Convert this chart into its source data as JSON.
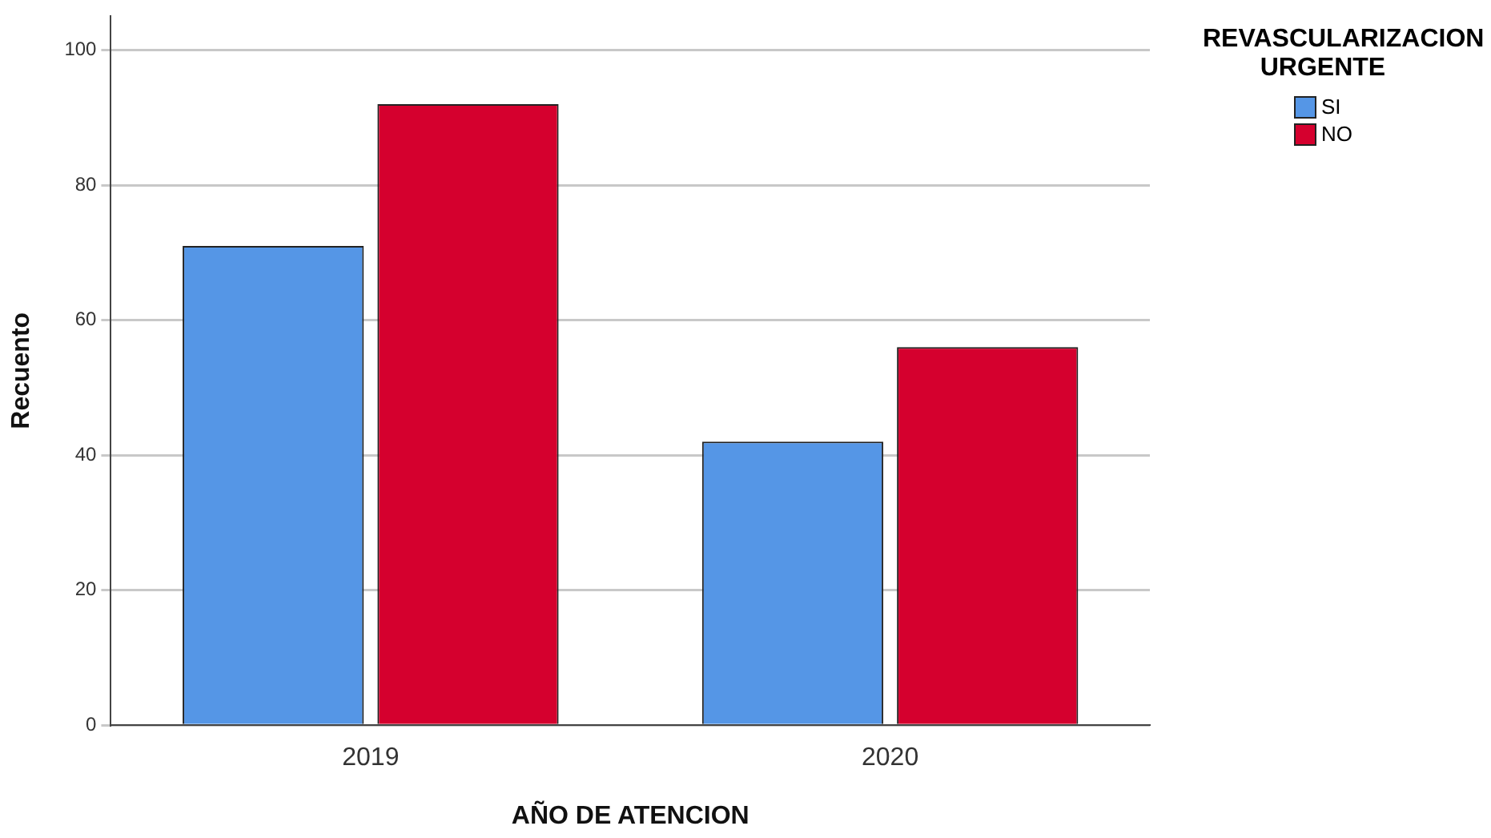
{
  "chart_data": {
    "type": "bar",
    "categories": [
      "2019",
      "2020"
    ],
    "series": [
      {
        "name": "SI",
        "color": "#5596e6",
        "values": [
          71,
          42
        ]
      },
      {
        "name": "NO",
        "color": "#d5002e",
        "values": [
          92,
          56
        ]
      }
    ],
    "xlabel": "AÑO DE ATENCION",
    "ylabel": "Recuento",
    "legend_title": "REVASCULARIZACION URGENTE",
    "ylim": [
      0,
      105
    ],
    "yticks": [
      0,
      20,
      40,
      60,
      80,
      100
    ],
    "grid": "y",
    "legend": "top right"
  }
}
